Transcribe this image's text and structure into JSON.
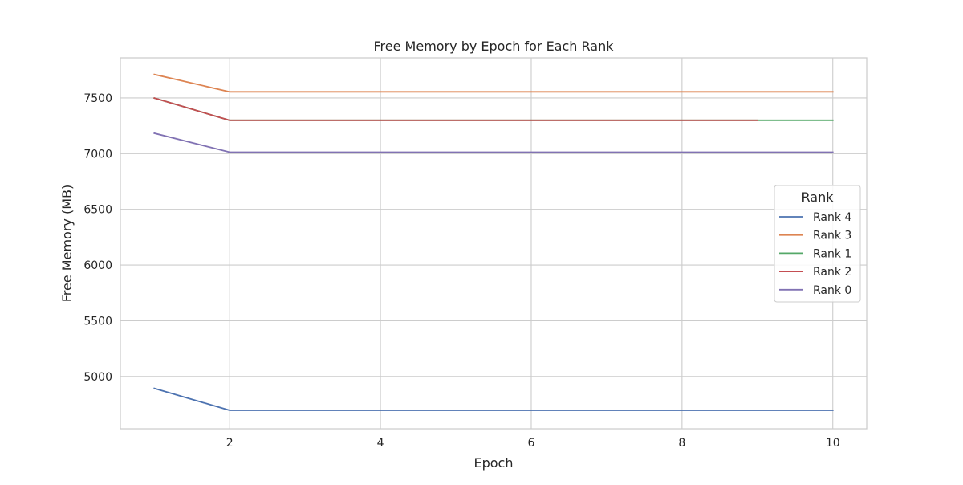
{
  "chart_data": {
    "type": "line",
    "title": "Free Memory by Epoch for Each Rank",
    "xlabel": "Epoch",
    "ylabel": "Free Memory (MB)",
    "xlim": [
      0.55,
      10.45
    ],
    "ylim": [
      4530,
      7860
    ],
    "xticks": [
      2,
      4,
      6,
      8,
      10
    ],
    "yticks": [
      5000,
      5500,
      6000,
      6500,
      7000,
      7500
    ],
    "grid": true,
    "legend": {
      "title": "Rank",
      "position": "center-right"
    },
    "series": [
      {
        "name": "Rank 4",
        "color": "#4c72b0",
        "x": [
          1,
          2,
          3,
          4,
          5,
          6,
          7,
          8,
          9,
          10
        ],
        "y": [
          4893,
          4696,
          4696,
          4696,
          4696,
          4696,
          4696,
          4696,
          4696,
          4696
        ]
      },
      {
        "name": "Rank 3",
        "color": "#dd8452",
        "x": [
          1,
          2,
          3,
          4,
          5,
          6,
          7,
          8,
          9,
          10
        ],
        "y": [
          7711,
          7555,
          7555,
          7555,
          7555,
          7555,
          7555,
          7555,
          7555,
          7555
        ]
      },
      {
        "name": "Rank 1",
        "color": "#55a868",
        "x": [
          1,
          2,
          3,
          4,
          5,
          6,
          7,
          8,
          9,
          10
        ],
        "y": [
          7499,
          7299,
          7299,
          7299,
          7299,
          7299,
          7299,
          7299,
          7299,
          7299
        ]
      },
      {
        "name": "Rank 2",
        "color": "#c44e52",
        "x": [
          1,
          2,
          3,
          4,
          5,
          6,
          7,
          8,
          9
        ],
        "y": [
          7499,
          7299,
          7299,
          7299,
          7299,
          7299,
          7299,
          7299,
          7299
        ]
      },
      {
        "name": "Rank 0",
        "color": "#8172b3",
        "x": [
          1,
          2,
          3,
          4,
          5,
          6,
          7,
          8,
          9,
          10
        ],
        "y": [
          7183,
          7013,
          7013,
          7013,
          7013,
          7013,
          7013,
          7013,
          7013,
          7013
        ]
      }
    ]
  }
}
